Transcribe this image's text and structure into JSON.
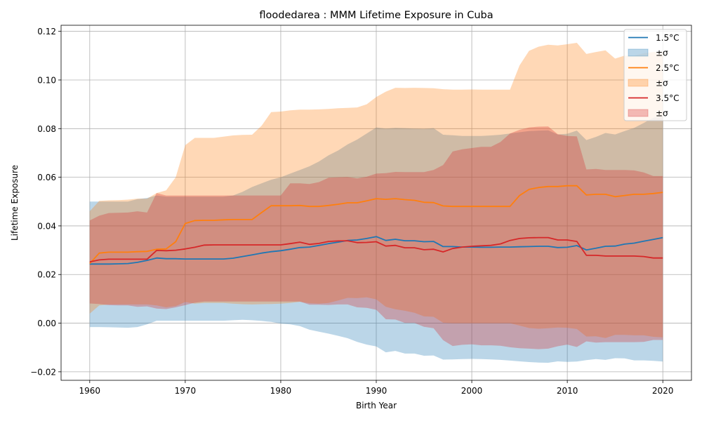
{
  "chart_data": {
    "type": "line",
    "title": "floodedarea : MMM Lifetime Exposure in Cuba",
    "xlabel": "Birth Year",
    "ylabel": "Lifetime Exposure",
    "xlim": [
      1957,
      2023
    ],
    "ylim": [
      -0.0235,
      0.1225
    ],
    "xticks": [
      1960,
      1970,
      1980,
      1990,
      2000,
      2010,
      2020
    ],
    "xtick_labels": [
      "1960",
      "1970",
      "1980",
      "1990",
      "2000",
      "2010",
      "2020"
    ],
    "yticks": [
      -0.02,
      0,
      0.02,
      0.04,
      0.06,
      0.08,
      0.1,
      0.12
    ],
    "ytick_labels": [
      "−0.02",
      "0.00",
      "0.02",
      "0.04",
      "0.06",
      "0.08",
      "0.10",
      "0.12"
    ],
    "grid": true,
    "legend_position": "top-right",
    "legend": [
      {
        "label": "1.5°C",
        "kind": "line",
        "series": 0
      },
      {
        "label": "±σ",
        "kind": "band",
        "series": 0
      },
      {
        "label": "2.5°C",
        "kind": "line",
        "series": 1
      },
      {
        "label": "±σ",
        "kind": "band",
        "series": 1
      },
      {
        "label": "3.5°C",
        "kind": "line",
        "series": 2
      },
      {
        "label": "±σ",
        "kind": "band",
        "series": 2
      }
    ],
    "x": [
      1960,
      1961,
      1962,
      1963,
      1964,
      1965,
      1966,
      1967,
      1968,
      1969,
      1970,
      1971,
      1972,
      1973,
      1974,
      1975,
      1976,
      1977,
      1978,
      1979,
      1980,
      1981,
      1982,
      1983,
      1984,
      1985,
      1986,
      1987,
      1988,
      1989,
      1990,
      1991,
      1992,
      1993,
      1994,
      1995,
      1996,
      1997,
      1998,
      1999,
      2000,
      2001,
      2002,
      2003,
      2004,
      2005,
      2006,
      2007,
      2008,
      2009,
      2010,
      2011,
      2012,
      2013,
      2014,
      2015,
      2016,
      2017,
      2018,
      2019,
      2020
    ],
    "series": [
      {
        "name": "1.5°C",
        "color": "#1f77b4",
        "band_color": "#1f77b4",
        "mean": [
          0.0243,
          0.0243,
          0.0243,
          0.0244,
          0.0245,
          0.025,
          0.0258,
          0.0268,
          0.0265,
          0.0265,
          0.0264,
          0.0264,
          0.0264,
          0.0264,
          0.0264,
          0.0267,
          0.0274,
          0.0281,
          0.0288,
          0.0294,
          0.0298,
          0.0304,
          0.0311,
          0.0313,
          0.032,
          0.0327,
          0.0333,
          0.034,
          0.0342,
          0.0348,
          0.0356,
          0.034,
          0.0345,
          0.0339,
          0.0339,
          0.0335,
          0.0336,
          0.0315,
          0.0315,
          0.0313,
          0.0313,
          0.0312,
          0.0312,
          0.0313,
          0.0313,
          0.0314,
          0.0315,
          0.0316,
          0.0316,
          0.0311,
          0.0312,
          0.0319,
          0.0301,
          0.0308,
          0.0316,
          0.0317,
          0.0325,
          0.0329,
          0.0337,
          0.0344,
          0.0352
        ],
        "upper": [
          0.05,
          0.05,
          0.05,
          0.05,
          0.05,
          0.051,
          0.0515,
          0.0525,
          0.052,
          0.052,
          0.052,
          0.052,
          0.052,
          0.052,
          0.052,
          0.0525,
          0.054,
          0.056,
          0.0575,
          0.059,
          0.06,
          0.0615,
          0.063,
          0.0645,
          0.0665,
          0.069,
          0.071,
          0.0735,
          0.0755,
          0.078,
          0.0805,
          0.08,
          0.0803,
          0.0802,
          0.08,
          0.0799,
          0.0802,
          0.0775,
          0.0773,
          0.077,
          0.077,
          0.077,
          0.0772,
          0.0775,
          0.078,
          0.0785,
          0.079,
          0.0792,
          0.0793,
          0.0776,
          0.0779,
          0.0792,
          0.0753,
          0.0766,
          0.0782,
          0.0776,
          0.079,
          0.0803,
          0.0823,
          0.0845,
          0.0851
        ],
        "lower": [
          -0.0016,
          -0.0016,
          -0.0017,
          -0.0018,
          -0.0019,
          -0.0016,
          -0.0005,
          0.001,
          0.001,
          0.001,
          0.001,
          0.001,
          0.001,
          0.001,
          0.001,
          0.0012,
          0.0014,
          0.0012,
          0.0009,
          0.0005,
          -0.0002,
          -0.0005,
          -0.0012,
          -0.0027,
          -0.0035,
          -0.0043,
          -0.0052,
          -0.0062,
          -0.0077,
          -0.0088,
          -0.0096,
          -0.012,
          -0.0114,
          -0.0125,
          -0.0125,
          -0.0134,
          -0.0133,
          -0.015,
          -0.0149,
          -0.0148,
          -0.0147,
          -0.0148,
          -0.0149,
          -0.0151,
          -0.0154,
          -0.0157,
          -0.016,
          -0.0162,
          -0.0163,
          -0.0157,
          -0.0159,
          -0.0158,
          -0.0152,
          -0.0148,
          -0.0151,
          -0.0144,
          -0.0145,
          -0.0153,
          -0.0153,
          -0.0155,
          -0.0158
        ]
      },
      {
        "name": "2.5°C",
        "color": "#ff7f0e",
        "band_color": "#ff7f0e",
        "mean": [
          0.0245,
          0.0288,
          0.0292,
          0.0292,
          0.0292,
          0.0294,
          0.0295,
          0.0304,
          0.0305,
          0.0335,
          0.041,
          0.0422,
          0.0423,
          0.0423,
          0.0425,
          0.0426,
          0.0426,
          0.0426,
          0.0455,
          0.0483,
          0.0483,
          0.0483,
          0.0484,
          0.048,
          0.048,
          0.0484,
          0.0489,
          0.0495,
          0.0495,
          0.0503,
          0.0512,
          0.0509,
          0.0512,
          0.0508,
          0.0505,
          0.0497,
          0.0496,
          0.0482,
          0.048,
          0.048,
          0.048,
          0.048,
          0.048,
          0.048,
          0.048,
          0.0525,
          0.055,
          0.0558,
          0.0562,
          0.0562,
          0.0565,
          0.0565,
          0.0527,
          0.053,
          0.053,
          0.052,
          0.0525,
          0.053,
          0.053,
          0.0533,
          0.0538
        ],
        "upper": [
          0.046,
          0.0503,
          0.0505,
          0.0506,
          0.0508,
          0.0512,
          0.0512,
          0.0535,
          0.0546,
          0.06,
          0.0732,
          0.0762,
          0.0762,
          0.0762,
          0.0767,
          0.0772,
          0.0774,
          0.0775,
          0.0812,
          0.0868,
          0.087,
          0.0875,
          0.0878,
          0.0878,
          0.0879,
          0.0881,
          0.0884,
          0.0885,
          0.0887,
          0.09,
          0.093,
          0.0952,
          0.0968,
          0.0967,
          0.0968,
          0.0967,
          0.0966,
          0.0962,
          0.096,
          0.096,
          0.0961,
          0.096,
          0.096,
          0.096,
          0.096,
          0.106,
          0.112,
          0.1137,
          0.1145,
          0.1142,
          0.1147,
          0.1153,
          0.1107,
          0.1115,
          0.1122,
          0.1088,
          0.11,
          0.11,
          0.111,
          0.1115,
          0.1115
        ],
        "lower": [
          0.0039,
          0.0073,
          0.0077,
          0.0077,
          0.0077,
          0.0077,
          0.0077,
          0.0073,
          0.0065,
          0.007,
          0.0087,
          0.008,
          0.0083,
          0.0083,
          0.0083,
          0.008,
          0.0078,
          0.0077,
          0.0078,
          0.0079,
          0.008,
          0.0083,
          0.0088,
          0.0082,
          0.008,
          0.0083,
          0.0093,
          0.0104,
          0.0103,
          0.0106,
          0.0098,
          0.0067,
          0.0057,
          0.0051,
          0.0043,
          0.0028,
          0.0026,
          0.0002,
          0.0,
          0.0,
          0.0,
          0.0,
          0.0,
          0.0,
          0.0,
          -0.001,
          -0.002,
          -0.0023,
          -0.0021,
          -0.0018,
          -0.0019,
          -0.0024,
          -0.0055,
          -0.0054,
          -0.0061,
          -0.0048,
          -0.0048,
          -0.005,
          -0.005,
          -0.0056,
          -0.0058
        ]
      },
      {
        "name": "3.5°C",
        "color": "#d62728",
        "band_color": "#d62728",
        "mean": [
          0.0252,
          0.026,
          0.0263,
          0.0263,
          0.0263,
          0.0263,
          0.0263,
          0.0299,
          0.0298,
          0.03,
          0.0305,
          0.0312,
          0.0321,
          0.0322,
          0.0322,
          0.0322,
          0.0322,
          0.0322,
          0.0322,
          0.0322,
          0.0322,
          0.0327,
          0.0333,
          0.0324,
          0.0328,
          0.0336,
          0.0338,
          0.0339,
          0.0331,
          0.0332,
          0.0335,
          0.0317,
          0.032,
          0.031,
          0.031,
          0.0302,
          0.0304,
          0.0293,
          0.0307,
          0.0313,
          0.0316,
          0.0318,
          0.032,
          0.0326,
          0.034,
          0.0348,
          0.0351,
          0.0352,
          0.0352,
          0.0342,
          0.0342,
          0.0336,
          0.0279,
          0.0279,
          0.0276,
          0.0276,
          0.0276,
          0.0276,
          0.0274,
          0.0268,
          0.0268
        ],
        "upper": [
          0.0422,
          0.0442,
          0.0453,
          0.0454,
          0.0455,
          0.046,
          0.0455,
          0.0535,
          0.0525,
          0.0525,
          0.0525,
          0.0525,
          0.0525,
          0.0525,
          0.0525,
          0.0525,
          0.0525,
          0.0525,
          0.0525,
          0.0525,
          0.0525,
          0.0575,
          0.0575,
          0.0572,
          0.058,
          0.0598,
          0.06,
          0.0601,
          0.0595,
          0.0602,
          0.0615,
          0.0617,
          0.0622,
          0.0621,
          0.0621,
          0.0621,
          0.063,
          0.065,
          0.0706,
          0.0715,
          0.072,
          0.0725,
          0.0725,
          0.0745,
          0.078,
          0.0795,
          0.0805,
          0.0808,
          0.0809,
          0.0777,
          0.077,
          0.0768,
          0.0632,
          0.0634,
          0.063,
          0.063,
          0.063,
          0.0628,
          0.062,
          0.0605,
          0.0605
        ],
        "lower": [
          0.0081,
          0.0079,
          0.0074,
          0.0073,
          0.0073,
          0.0067,
          0.0069,
          0.006,
          0.0058,
          0.0065,
          0.0074,
          0.0084,
          0.0089,
          0.0089,
          0.0089,
          0.0089,
          0.0089,
          0.0089,
          0.0089,
          0.0089,
          0.0089,
          0.0089,
          0.0089,
          0.0076,
          0.0076,
          0.0075,
          0.0077,
          0.0077,
          0.0065,
          0.0063,
          0.0055,
          0.0016,
          0.0015,
          0.0001,
          0.0001,
          -0.0015,
          -0.0021,
          -0.007,
          -0.0094,
          -0.0089,
          -0.0087,
          -0.0091,
          -0.0091,
          -0.0093,
          -0.0099,
          -0.0103,
          -0.0105,
          -0.0107,
          -0.0105,
          -0.0095,
          -0.0088,
          -0.0098,
          -0.0075,
          -0.008,
          -0.0078,
          -0.0078,
          -0.0078,
          -0.0078,
          -0.0077,
          -0.0069,
          -0.0069
        ]
      }
    ]
  }
}
